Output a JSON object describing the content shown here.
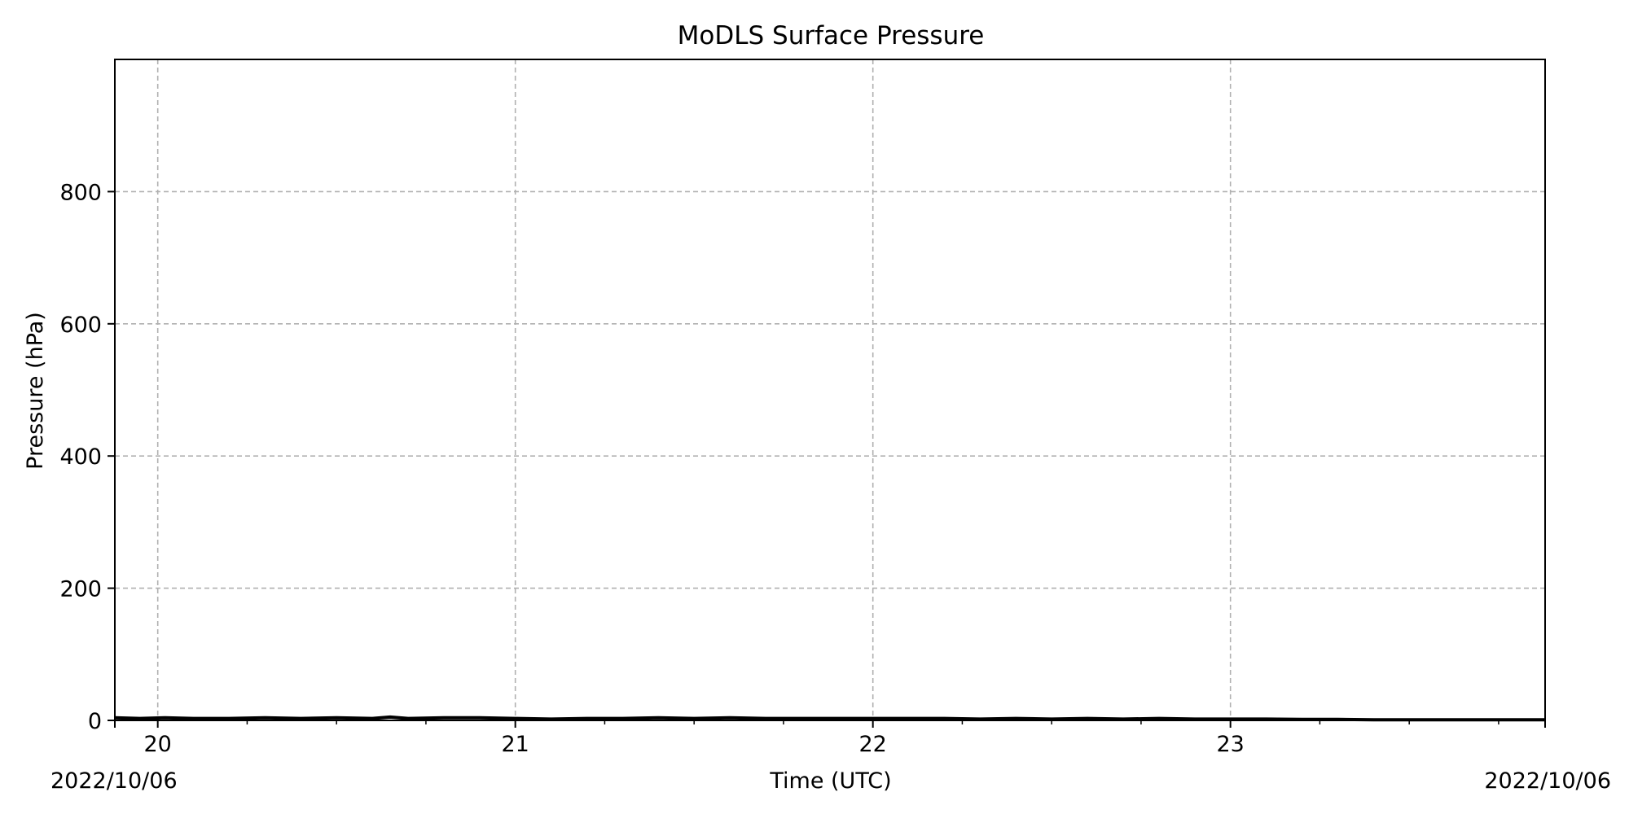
{
  "chart_data": {
    "type": "line",
    "title": "MoDLS Surface Pressure",
    "xlabel": "Time (UTC)",
    "ylabel": "Pressure (hPa)",
    "x_unit": "hour (UTC)",
    "xlim": [
      19.88,
      23.88
    ],
    "ylim": [
      0,
      1000
    ],
    "x_ticks": [
      20,
      21,
      22,
      23
    ],
    "x_tick_labels": [
      "20",
      "21",
      "22",
      "23"
    ],
    "x_minor_step": 0.25,
    "y_ticks": [
      0,
      200,
      400,
      600,
      800
    ],
    "y_tick_labels": [
      "0",
      "200",
      "400",
      "600",
      "800"
    ],
    "date_labels": {
      "left": "2022/10/06",
      "right": "2022/10/06"
    },
    "grid": true,
    "line_color": "#000000",
    "grid_color": "#b0b0b0",
    "series": [
      {
        "x": [
          19.88,
          19.95,
          20.02,
          20.1,
          20.2,
          20.3,
          20.4,
          20.5,
          20.6,
          20.65,
          20.7,
          20.8,
          20.9,
          21.0,
          21.1,
          21.2,
          21.3,
          21.4,
          21.5,
          21.6,
          21.7,
          21.8,
          21.9,
          22.0,
          22.1,
          22.2,
          22.3,
          22.4,
          22.5,
          22.6,
          22.7,
          22.8,
          22.9,
          23.0,
          23.1,
          23.2,
          23.3,
          23.4,
          23.5,
          23.6,
          23.7,
          23.8,
          23.88
        ],
        "values": [
          4,
          3,
          4,
          3,
          3,
          4,
          3,
          4,
          3,
          5,
          3,
          4,
          4,
          3,
          2,
          3,
          3,
          4,
          3,
          4,
          3,
          3,
          3,
          3,
          3,
          3,
          2,
          3,
          2,
          3,
          2,
          3,
          2,
          2,
          2,
          1.5,
          1.5,
          1,
          1,
          1,
          1,
          1,
          1
        ]
      }
    ]
  }
}
